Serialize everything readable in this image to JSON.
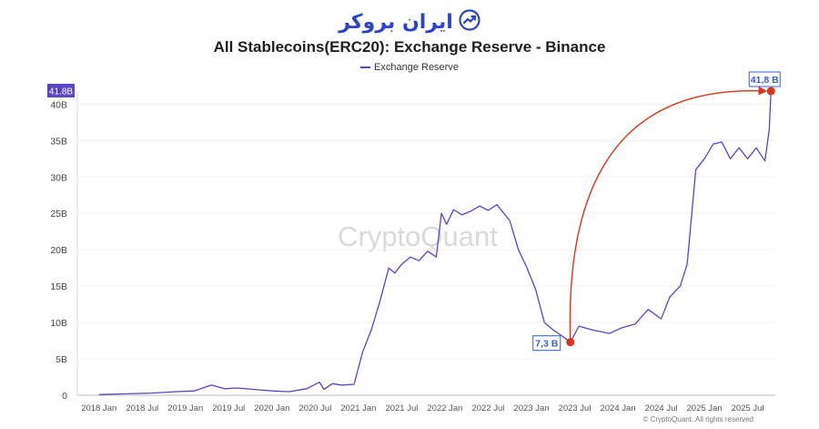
{
  "brand": {
    "name": "ایران بروکر",
    "icon": "chart-trend-icon",
    "color": "#2a45c9"
  },
  "watermark": "CryptoQuant",
  "copyright": "© CryptoQuant. All rights reserved",
  "annotations": {
    "start_label": "7,3 B",
    "end_label": "41,8 B",
    "start_value": 7.3,
    "end_value": 41.8,
    "start_x": 2023.45,
    "end_x": 2025.77,
    "arrow_color": "#d9341c"
  },
  "chart_data": {
    "type": "line",
    "title": "All Stablecoins(ERC20): Exchange Reserve - Binance",
    "xlabel": "",
    "ylabel": "",
    "legend": [
      "Exchange Reserve"
    ],
    "legend_position": "top-center",
    "current_value_badge": "41.8B",
    "ylim": [
      0,
      41.8
    ],
    "xlim": [
      2017.75,
      2025.82
    ],
    "yticks": [
      {
        "value": 0,
        "label": "0"
      },
      {
        "value": 5,
        "label": "5B"
      },
      {
        "value": 10,
        "label": "10B"
      },
      {
        "value": 15,
        "label": "15B"
      },
      {
        "value": 20,
        "label": "20B"
      },
      {
        "value": 25,
        "label": "25B"
      },
      {
        "value": 30,
        "label": "30B"
      },
      {
        "value": 35,
        "label": "35B"
      },
      {
        "value": 40,
        "label": "40B"
      }
    ],
    "xticks": [
      {
        "value": 2018.0,
        "label": "2018 Jan"
      },
      {
        "value": 2018.5,
        "label": "2018 Jul"
      },
      {
        "value": 2019.0,
        "label": "2019 Jan"
      },
      {
        "value": 2019.5,
        "label": "2019 Jul"
      },
      {
        "value": 2020.0,
        "label": "2020 Jan"
      },
      {
        "value": 2020.5,
        "label": "2020 Jul"
      },
      {
        "value": 2021.0,
        "label": "2021 Jan"
      },
      {
        "value": 2021.5,
        "label": "2021 Jul"
      },
      {
        "value": 2022.0,
        "label": "2022 Jan"
      },
      {
        "value": 2022.5,
        "label": "2022 Jul"
      },
      {
        "value": 2023.0,
        "label": "2023 Jan"
      },
      {
        "value": 2023.5,
        "label": "2023 Jul"
      },
      {
        "value": 2024.0,
        "label": "2024 Jan"
      },
      {
        "value": 2024.5,
        "label": "2024 Jul"
      },
      {
        "value": 2025.0,
        "label": "2025 Jan"
      },
      {
        "value": 2025.5,
        "label": "2025 Jul"
      }
    ],
    "series": [
      {
        "name": "Exchange Reserve",
        "color": "#5a45c6",
        "x": [
          2018.0,
          2018.3,
          2018.6,
          2018.9,
          2019.1,
          2019.3,
          2019.45,
          2019.6,
          2019.8,
          2020.0,
          2020.2,
          2020.4,
          2020.55,
          2020.6,
          2020.7,
          2020.8,
          2020.95,
          2021.05,
          2021.15,
          2021.25,
          2021.35,
          2021.42,
          2021.5,
          2021.6,
          2021.7,
          2021.8,
          2021.9,
          2021.96,
          2022.02,
          2022.1,
          2022.2,
          2022.3,
          2022.4,
          2022.5,
          2022.6,
          2022.75,
          2022.85,
          2022.95,
          2023.05,
          2023.15,
          2023.25,
          2023.35,
          2023.45,
          2023.55,
          2023.7,
          2023.9,
          2024.05,
          2024.2,
          2024.35,
          2024.5,
          2024.6,
          2024.72,
          2024.8,
          2024.9,
          2025.0,
          2025.1,
          2025.2,
          2025.3,
          2025.4,
          2025.5,
          2025.6,
          2025.7,
          2025.75,
          2025.77
        ],
        "y": [
          0.1,
          0.2,
          0.3,
          0.5,
          0.6,
          1.4,
          0.9,
          1.0,
          0.8,
          0.6,
          0.5,
          0.9,
          1.8,
          0.8,
          1.6,
          1.4,
          1.5,
          6.0,
          9.0,
          13.0,
          17.5,
          16.8,
          18.0,
          19.0,
          18.5,
          19.8,
          19.0,
          25.0,
          23.5,
          25.5,
          24.8,
          25.3,
          26.0,
          25.4,
          26.2,
          24.0,
          20.0,
          17.5,
          14.5,
          10.0,
          9.0,
          8.2,
          7.3,
          9.5,
          9.0,
          8.5,
          9.3,
          9.8,
          11.8,
          10.5,
          13.5,
          15.0,
          18.0,
          31.0,
          32.5,
          34.5,
          34.8,
          32.5,
          34.0,
          32.5,
          34.0,
          32.2,
          36.5,
          41.8
        ]
      }
    ]
  }
}
